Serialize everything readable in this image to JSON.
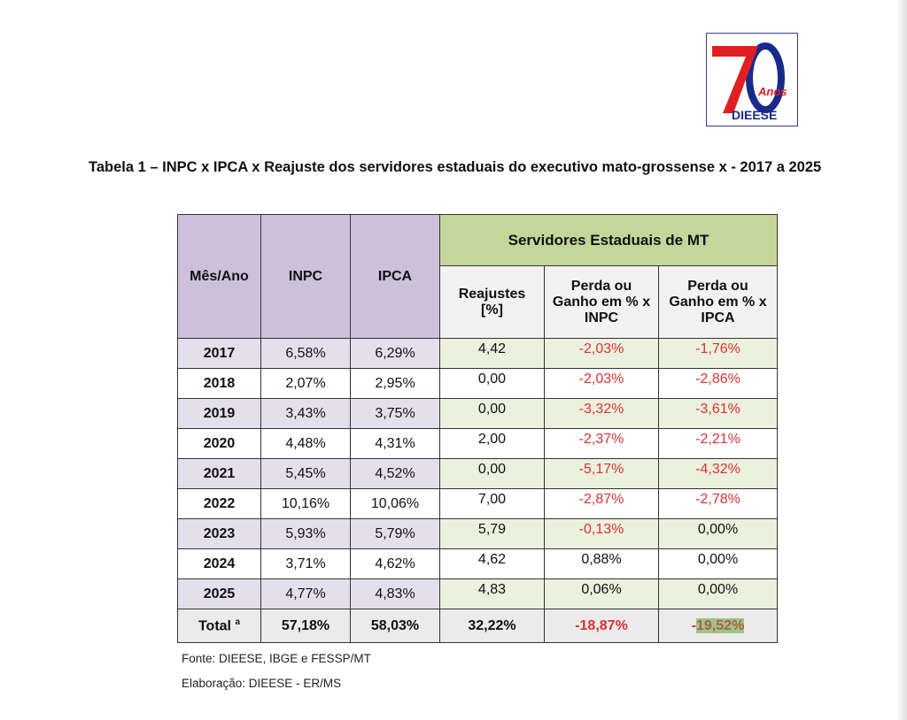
{
  "logo": {
    "number": "70",
    "anos": "Anos",
    "org": "DIEESE"
  },
  "title": "Tabela 1 – INPC x IPCA x Reajuste dos servidores estaduais do executivo mato-grossense x - 2017 a 2025",
  "headers": {
    "month": "Mês/Ano",
    "inpc": "INPC",
    "ipca": "IPCA",
    "group": "Servidores Estaduais de MT",
    "reaj": "Reajustes [%]",
    "vs_inpc": "Perda ou Ganho em % x INPC",
    "vs_ipca": "Perda ou Ganho em % x IPCA"
  },
  "rows": [
    {
      "year": "2017",
      "inpc": "6,58%",
      "ipca": "6,29%",
      "reaj": "4,42",
      "vs_inpc": "-2,03%",
      "vs_ipca": "-1,76%"
    },
    {
      "year": "2018",
      "inpc": "2,07%",
      "ipca": "2,95%",
      "reaj": "0,00",
      "vs_inpc": "-2,03%",
      "vs_ipca": "-2,86%"
    },
    {
      "year": "2019",
      "inpc": "3,43%",
      "ipca": "3,75%",
      "reaj": "0,00",
      "vs_inpc": "-3,32%",
      "vs_ipca": "-3,61%"
    },
    {
      "year": "2020",
      "inpc": "4,48%",
      "ipca": "4,31%",
      "reaj": "2,00",
      "vs_inpc": "-2,37%",
      "vs_ipca": "-2,21%"
    },
    {
      "year": "2021",
      "inpc": "5,45%",
      "ipca": "4,52%",
      "reaj": "0,00",
      "vs_inpc": "-5,17%",
      "vs_ipca": "-4,32%"
    },
    {
      "year": "2022",
      "inpc": "10,16%",
      "ipca": "10,06%",
      "reaj": "7,00",
      "vs_inpc": "-2,87%",
      "vs_ipca": "-2,78%"
    },
    {
      "year": "2023",
      "inpc": "5,93%",
      "ipca": "5,79%",
      "reaj": "5,79",
      "vs_inpc": "-0,13%",
      "vs_ipca": "0,00%"
    },
    {
      "year": "2024",
      "inpc": "3,71%",
      "ipca": "4,62%",
      "reaj": "4,62",
      "vs_inpc": "0,88%",
      "vs_ipca": "0,00%"
    },
    {
      "year": "2025",
      "inpc": "4,77%",
      "ipca": "4,83%",
      "reaj": "4,83",
      "vs_inpc": "0,06%",
      "vs_ipca": "0,00%"
    }
  ],
  "total": {
    "label": "Total",
    "sup": "a",
    "inpc": "57,18%",
    "ipca": "58,03%",
    "reaj": "32,22%",
    "vs_inpc": "-18,87%",
    "vs_ipca_sign": "-",
    "vs_ipca": "19,52%"
  },
  "source": "Fonte: DIEESE, IBGE e FESSP/MT",
  "elaboration": "Elaboração: DIEESE - ER/MS"
}
